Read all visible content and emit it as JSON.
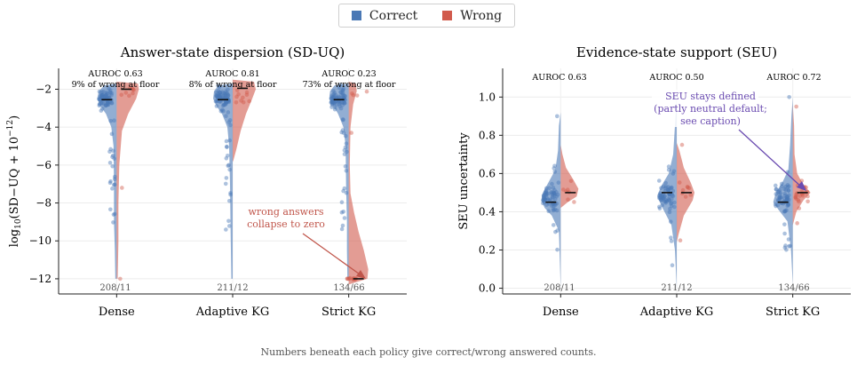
{
  "legend": {
    "items": [
      {
        "label": "Correct",
        "color": "#4a78b5"
      },
      {
        "label": "Wrong",
        "color": "#d15a4c"
      }
    ]
  },
  "footnote": "Numbers beneath each policy give correct/wrong answered counts.",
  "chart_data": [
    {
      "type": "violin",
      "title": "Answer-state dispersion (SD-UQ)",
      "ylabel": "log10(SD-UQ + 10^-12)",
      "ylim": [
        -12.8,
        -0.9
      ],
      "yticks": [
        -2,
        -4,
        -6,
        -8,
        -10,
        -12
      ],
      "categories": [
        "Dense",
        "Adaptive KG",
        "Strict KG"
      ],
      "top_annotations": [
        {
          "line1": "AUROC 0.63",
          "line2": "9% of wrong at floor"
        },
        {
          "line1": "AUROC 0.81",
          "line2": "8% of wrong at floor"
        },
        {
          "line1": "AUROC 0.23",
          "line2": "73% of wrong at floor"
        }
      ],
      "counts": [
        "208/11",
        "211/12",
        "134/66"
      ],
      "series": [
        {
          "name": "Correct",
          "medians": [
            -2.55,
            -2.55,
            -2.55
          ]
        },
        {
          "name": "Wrong",
          "medians": [
            -2.0,
            -1.95,
            -12.0
          ]
        }
      ],
      "callout": {
        "text_lines": [
          "wrong answers",
          "collapse to zero"
        ],
        "color": "#c0554a"
      }
    },
    {
      "type": "violin",
      "title": "Evidence-state support (SEU)",
      "ylabel": "SEU uncertainty",
      "ylim": [
        -0.03,
        1.15
      ],
      "yticks": [
        0.0,
        0.2,
        0.4,
        0.6,
        0.8,
        1.0
      ],
      "categories": [
        "Dense",
        "Adaptive KG",
        "Strict KG"
      ],
      "top_annotations": [
        {
          "line1": "AUROC 0.63"
        },
        {
          "line1": "AUROC 0.50"
        },
        {
          "line1": "AUROC 0.72"
        }
      ],
      "counts": [
        "208/11",
        "211/12",
        "134/66"
      ],
      "series": [
        {
          "name": "Correct",
          "medians": [
            0.45,
            0.5,
            0.45
          ]
        },
        {
          "name": "Wrong",
          "medians": [
            0.5,
            0.5,
            0.5
          ]
        }
      ],
      "callout": {
        "text_lines": [
          "SEU stays defined",
          "(partly neutral default;",
          "see caption)"
        ],
        "color": "#6a4bb0"
      }
    }
  ]
}
